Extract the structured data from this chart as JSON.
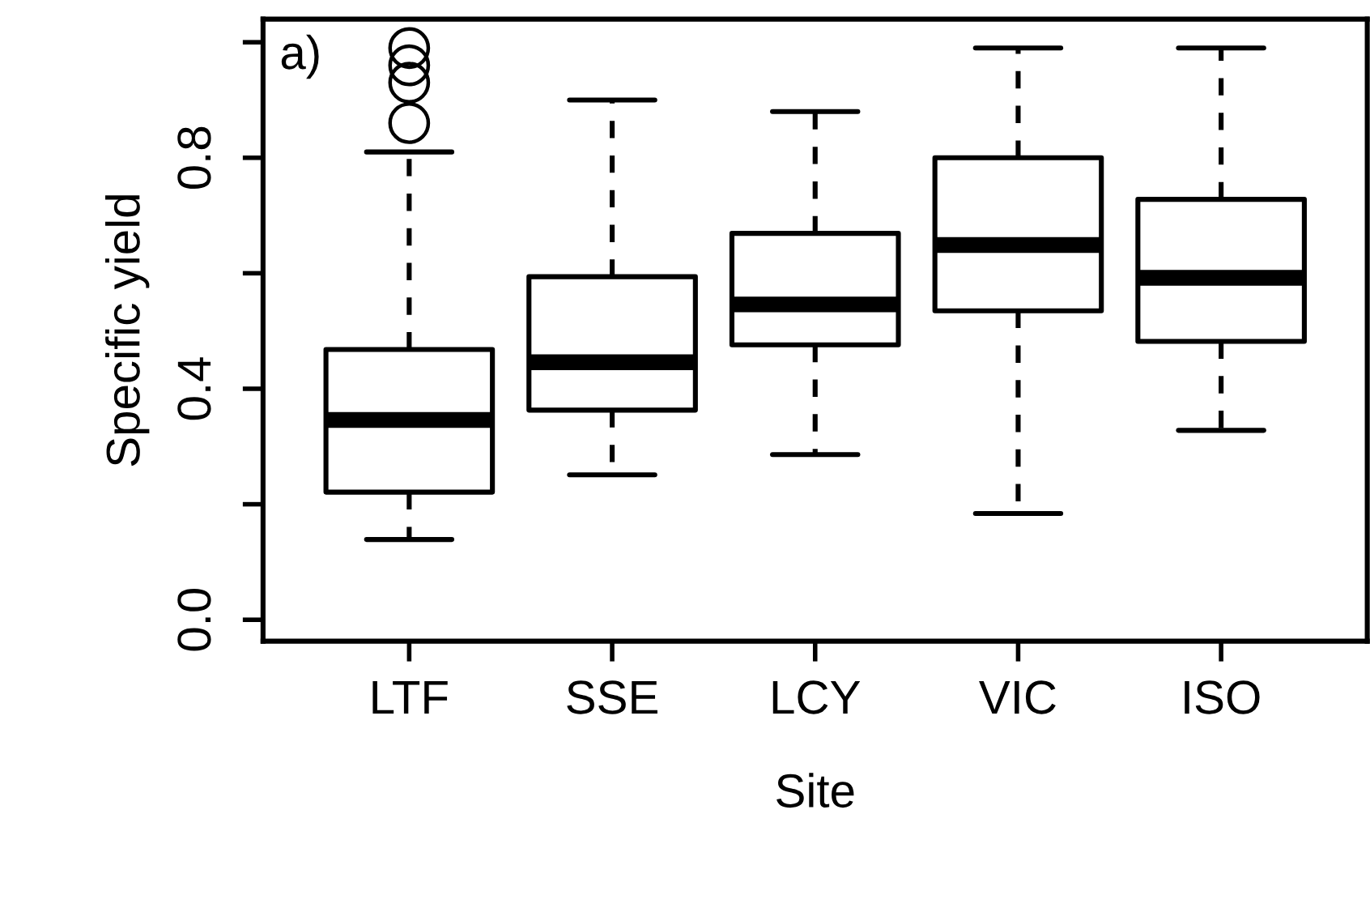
{
  "chart_data": {
    "type": "box",
    "xlabel": "Site",
    "ylabel": "Specific yield",
    "annotations": [
      "a)"
    ],
    "categories": [
      "LTF",
      "SSE",
      "LCY",
      "VIC",
      "ISO"
    ],
    "boxes": [
      {
        "low": 0.139,
        "q1": 0.221,
        "median": 0.346,
        "q3": 0.468,
        "high": 0.81,
        "outliers": [
          0.86,
          0.93,
          0.96,
          0.99
        ]
      },
      {
        "low": 0.251,
        "q1": 0.363,
        "median": 0.446,
        "q3": 0.594,
        "high": 0.9
      },
      {
        "low": 0.286,
        "q1": 0.476,
        "median": 0.546,
        "q3": 0.669,
        "high": 0.88
      },
      {
        "low": 0.184,
        "q1": 0.535,
        "median": 0.649,
        "q3": 0.8,
        "high": 0.99
      },
      {
        "low": 0.328,
        "q1": 0.482,
        "median": 0.592,
        "q3": 0.728,
        "high": 0.99
      }
    ],
    "ylim": [
      -0.037,
      1.04
    ],
    "yticks": [
      {
        "value": 0,
        "label": "0.0"
      },
      {
        "value": 0.2,
        "label": null
      },
      {
        "value": 0.4,
        "label": "0.4"
      },
      {
        "value": 0.6,
        "label": null
      },
      {
        "value": 0.8,
        "label": "0.8"
      },
      {
        "value": 1.0,
        "label": null
      }
    ],
    "grid": false,
    "legend": false
  }
}
